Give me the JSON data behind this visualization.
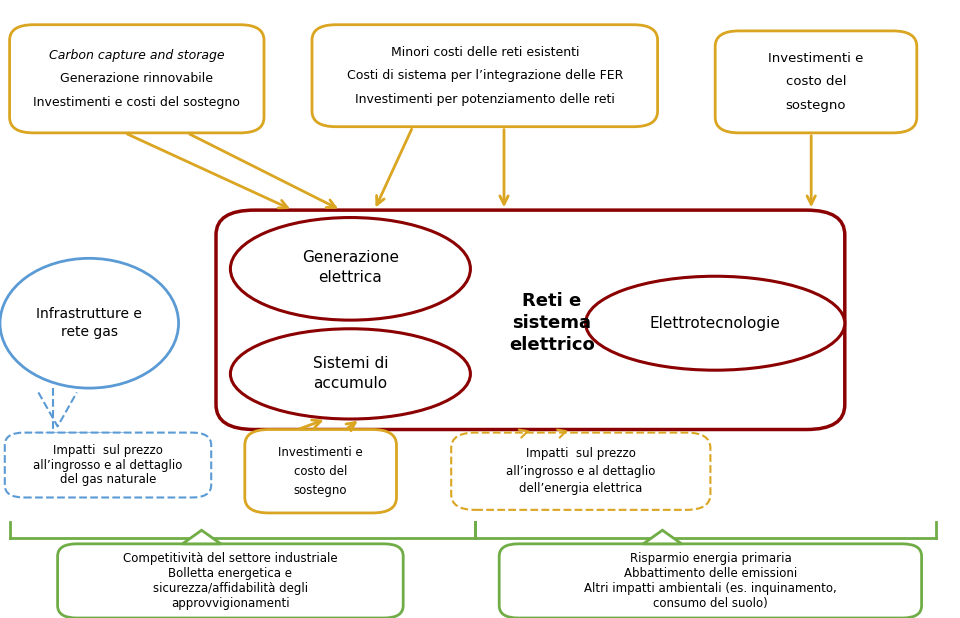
{
  "bg_color": "#ffffff",
  "dark_red": "#8B0000",
  "gold": "#DAA520",
  "blue_light": "#5B9BD5",
  "green": "#70AD47",
  "bubble_tl_line1": "Carbon capture and storage",
  "bubble_tl_line2": "Generazione rinnovabile",
  "bubble_tl_line3": "Investimenti e costi del sostegno",
  "bubble_tc_line1": "Minori costi delle reti esistenti",
  "bubble_tc_line2": "Costi di sistema per l’integrazione delle FER",
  "bubble_tc_line3": "Investimenti per potenziamento delle reti",
  "bubble_tr_line1": "Investimenti e",
  "bubble_tr_line2": "costo del",
  "bubble_tr_line3": "sostegno",
  "label_main": "Reti e\nsistema\nelettrico",
  "label_gen": "Generazione\nelettrica",
  "label_acc": "Sistemi di\naccumulo",
  "label_elet": "Elettrotecnologie",
  "label_infra": "Infrastrutture e\nrete gas",
  "box_gas_line1": "Impatti  sul prezzo",
  "box_gas_line2": "all’ingrosso e al dettaglio",
  "box_gas_line3": "del gas naturale",
  "box_inv_line1": "Investimenti e",
  "box_inv_line2": "costo del",
  "box_inv_line3": "sostegno",
  "box_ele_line1": "Impatti  sul prezzo",
  "box_ele_line2": "all’ingrosso e al dettaglio",
  "box_ele_line3": "dell’energia elettrica",
  "box_comp_line1": "Competitività del settore industriale",
  "box_comp_line2": "Bolletta energetica e",
  "box_comp_line3": "sicurezza/affidabilità degli",
  "box_comp_line4": "approvvigionamenti",
  "box_risp_line1": "Risparmio energia primaria",
  "box_risp_line2": "Abbattimento delle emissioni",
  "box_risp_line3": "Altri impatti ambientali (es. inquinamento,",
  "box_risp_line4": "consumo del suolo)"
}
